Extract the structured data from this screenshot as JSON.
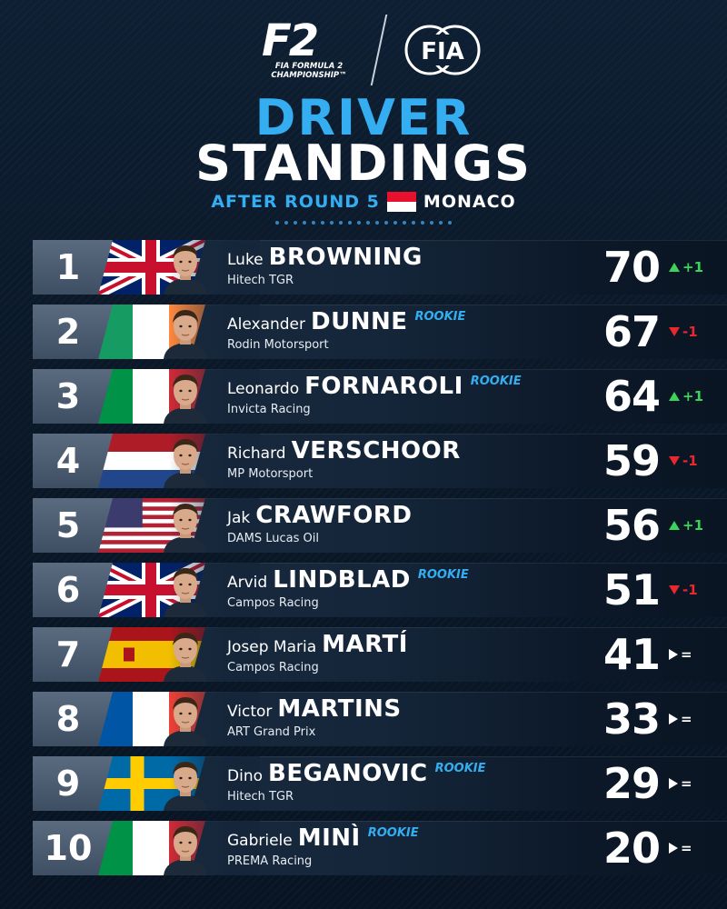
{
  "header": {
    "series_mark": "F2",
    "series_name": "FIA FORMULA 2 CHAMPIONSHIP™",
    "fia_logo_text": "FIA",
    "title_line1": "DRIVER",
    "title_line2": "STANDINGS",
    "round_text": "AFTER ROUND 5",
    "grand_prix": "MONACO",
    "monaco_flag_colors": [
      "#e8112d",
      "#ffffff"
    ]
  },
  "colors": {
    "accent_blue": "#34aef0",
    "up_green": "#3dd35a",
    "down_red": "#e8282d"
  },
  "standings": [
    {
      "pos": "1",
      "first": "Luke",
      "last": "BROWNING",
      "rookie": "",
      "team": "Hitech TGR",
      "points": "70",
      "change": "+1",
      "trend": "up",
      "flag": "uk",
      "portrait": "driver-portrait"
    },
    {
      "pos": "2",
      "first": "Alexander",
      "last": "DUNNE",
      "rookie": "ROOKIE",
      "team": "Rodin Motorsport",
      "points": "67",
      "change": "-1",
      "trend": "down",
      "flag": "ireland",
      "portrait": "driver-portrait"
    },
    {
      "pos": "3",
      "first": "Leonardo",
      "last": "FORNAROLI",
      "rookie": "ROOKIE",
      "team": "Invicta Racing",
      "points": "64",
      "change": "+1",
      "trend": "up",
      "flag": "italy",
      "portrait": "driver-portrait"
    },
    {
      "pos": "4",
      "first": "Richard",
      "last": "VERSCHOOR",
      "rookie": "",
      "team": "MP Motorsport",
      "points": "59",
      "change": "-1",
      "trend": "down",
      "flag": "netherlands",
      "portrait": "driver-portrait"
    },
    {
      "pos": "5",
      "first": "Jak",
      "last": "CRAWFORD",
      "rookie": "",
      "team": "DAMS Lucas Oil",
      "points": "56",
      "change": "+1",
      "trend": "up",
      "flag": "usa",
      "portrait": "driver-portrait"
    },
    {
      "pos": "6",
      "first": "Arvid",
      "last": "LINDBLAD",
      "rookie": "ROOKIE",
      "team": "Campos Racing",
      "points": "51",
      "change": "-1",
      "trend": "down",
      "flag": "uk",
      "portrait": "driver-portrait"
    },
    {
      "pos": "7",
      "first": "Josep Maria",
      "last": "MARTÍ",
      "rookie": "",
      "team": "Campos Racing",
      "points": "41",
      "change": "=",
      "trend": "same",
      "flag": "spain",
      "portrait": "driver-portrait"
    },
    {
      "pos": "8",
      "first": "Victor",
      "last": "MARTINS",
      "rookie": "",
      "team": "ART Grand Prix",
      "points": "33",
      "change": "=",
      "trend": "same",
      "flag": "france",
      "portrait": "driver-portrait"
    },
    {
      "pos": "9",
      "first": "Dino",
      "last": "BEGANOVIC",
      "rookie": "ROOKIE",
      "team": "Hitech TGR",
      "points": "29",
      "change": "=",
      "trend": "same",
      "flag": "sweden",
      "portrait": "driver-portrait"
    },
    {
      "pos": "10",
      "first": "Gabriele",
      "last": "MINÌ",
      "rookie": "ROOKIE",
      "team": "PREMA Racing",
      "points": "20",
      "change": "=",
      "trend": "same",
      "flag": "italy",
      "portrait": "driver-portrait"
    }
  ]
}
